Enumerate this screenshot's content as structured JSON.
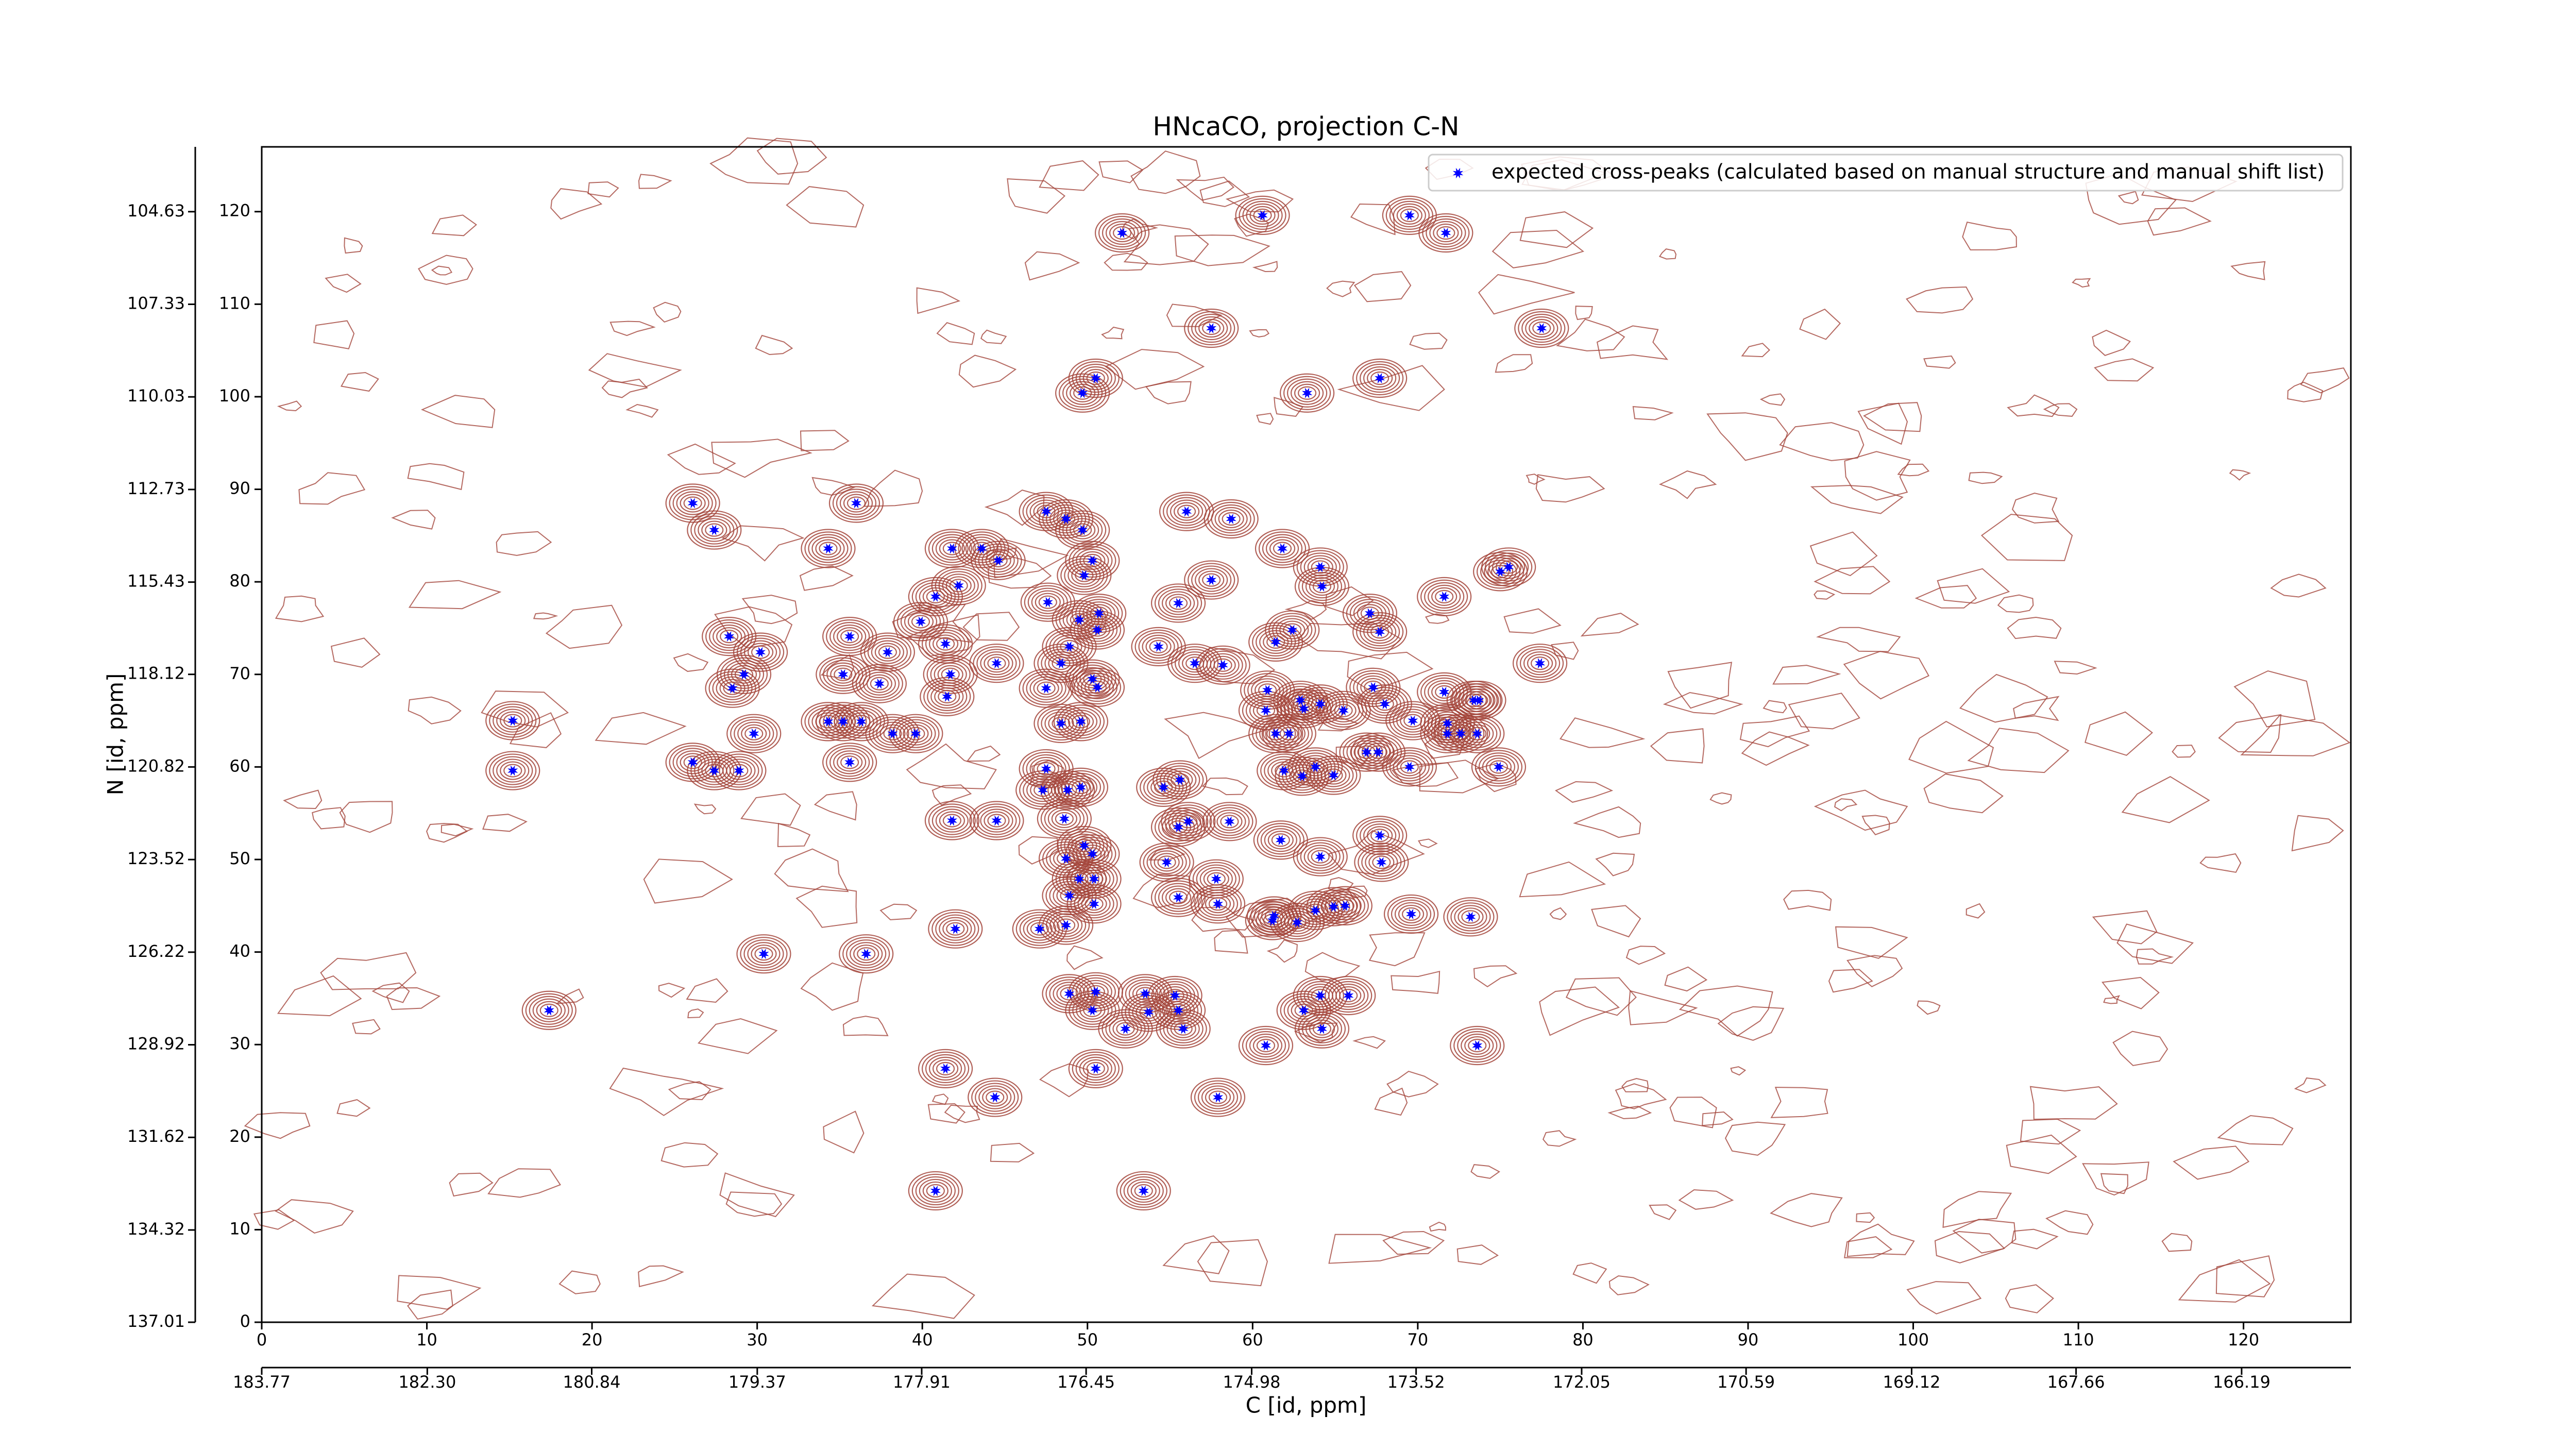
{
  "chart_data": {
    "type": "scatter",
    "title": "HNcaCO, projection C-N",
    "xlabel": "C [id, ppm]",
    "ylabel": "N [id, ppm]",
    "legend": "upper right",
    "contour_color": "#a3443a",
    "xlim": [
      0,
      126.5
    ],
    "xticks": [
      0,
      10,
      20,
      30,
      40,
      50,
      60,
      70,
      80,
      90,
      100,
      110,
      120
    ],
    "ylim": [
      0,
      127
    ],
    "yticks": [
      0,
      10,
      20,
      30,
      40,
      50,
      60,
      70,
      80,
      90,
      100,
      110,
      120
    ],
    "x2lim": [
      183.77,
      165.22
    ],
    "x2ticks": [
      183.77,
      {
        "value": 182.3,
        "label": "182.30"
      },
      180.84,
      179.37,
      177.91,
      176.45,
      174.98,
      173.52,
      172.05,
      170.59,
      169.12,
      167.66,
      166.19
    ],
    "y2lim": [
      137.01,
      102.74
    ],
    "y2ticks": [
      104.63,
      107.33,
      110.03,
      112.73,
      115.43,
      118.12,
      120.82,
      123.52,
      126.22,
      128.92,
      131.62,
      134.32,
      137.01
    ],
    "series": [
      {
        "name": "expected cross-peaks (calculated based on manual structure and manual shift list)",
        "color": "#0000ff",
        "x": [
          52.1,
          60.6,
          69.5,
          71.7,
          57.5,
          77.5,
          50.5,
          49.7,
          63.3,
          67.7,
          26.1,
          27.4,
          36.0,
          34.3,
          41.8,
          43.6,
          44.6,
          47.5,
          48.7,
          49.7,
          56.0,
          58.7,
          61.8,
          64.1,
          64.2,
          50.3,
          49.8,
          42.2,
          40.8,
          47.6,
          57.5,
          55.5,
          71.6,
          75.0,
          75.5,
          39.9,
          49.5,
          50.7,
          50.6,
          67.1,
          67.7,
          28.3,
          35.6,
          41.4,
          48.9,
          54.3,
          61.4,
          62.4,
          30.2,
          37.9,
          44.5,
          48.4,
          56.5,
          58.2,
          77.4,
          29.2,
          35.2,
          41.7,
          28.5,
          37.4,
          47.5,
          50.6,
          50.3,
          60.9,
          62.9,
          67.3,
          71.6,
          73.4,
          41.5,
          60.8,
          63.1,
          64.1,
          65.5,
          68.0,
          69.7,
          71.8,
          73.7,
          15.2,
          34.3,
          35.2,
          36.3,
          29.8,
          38.2,
          39.6,
          48.4,
          49.6,
          61.4,
          62.2,
          71.8,
          72.6,
          73.6,
          26.1,
          27.4,
          28.9,
          35.6,
          15.2,
          47.5,
          61.9,
          63.8,
          64.9,
          66.9,
          67.6,
          69.5,
          74.9,
          63.0,
          55.6,
          47.3,
          48.8,
          49.6,
          54.6,
          48.6,
          41.8,
          44.5,
          55.5,
          56.1,
          58.6,
          61.7,
          67.7,
          49.8,
          48.7,
          50.3,
          64.1,
          54.8,
          67.8,
          50.4,
          49.5,
          57.8,
          48.9,
          55.5,
          50.4,
          57.9,
          61.3,
          61.2,
          62.7,
          63.8,
          64.9,
          65.6,
          69.6,
          73.2,
          42.0,
          47.1,
          48.7,
          30.4,
          36.6,
          17.4,
          48.9,
          50.5,
          53.5,
          55.3,
          55.5,
          50.3,
          53.7,
          52.3,
          55.8,
          64.1,
          65.8,
          63.1,
          64.2,
          41.4,
          50.5,
          60.8,
          73.6,
          44.4,
          57.9,
          40.8,
          53.4
        ],
        "values": [
          117.7,
          119.6,
          119.6,
          117.7,
          107.4,
          107.4,
          102.0,
          100.4,
          100.4,
          102.0,
          88.5,
          85.6,
          88.5,
          83.6,
          83.6,
          83.6,
          82.3,
          87.6,
          86.8,
          85.6,
          87.6,
          86.8,
          83.6,
          81.6,
          79.5,
          82.3,
          80.7,
          79.6,
          78.4,
          77.8,
          80.2,
          77.7,
          78.4,
          81.1,
          81.6,
          75.7,
          75.9,
          76.6,
          74.8,
          76.6,
          74.6,
          74.1,
          74.1,
          73.3,
          73.0,
          73.0,
          73.5,
          74.8,
          72.4,
          72.4,
          71.2,
          71.2,
          71.2,
          71.0,
          71.2,
          70.0,
          70.0,
          70.0,
          68.5,
          69.0,
          68.5,
          68.6,
          69.5,
          68.3,
          67.2,
          68.6,
          68.1,
          67.2,
          67.6,
          66.1,
          66.3,
          66.8,
          66.1,
          66.8,
          65.0,
          64.7,
          67.2,
          65.0,
          64.9,
          64.9,
          64.9,
          63.6,
          63.6,
          63.6,
          64.7,
          64.9,
          63.6,
          63.6,
          63.6,
          63.6,
          63.6,
          60.5,
          59.6,
          59.6,
          60.5,
          59.6,
          59.8,
          59.6,
          60.0,
          59.1,
          61.6,
          61.6,
          60.0,
          60.0,
          59.0,
          58.6,
          57.5,
          57.5,
          57.8,
          57.8,
          54.4,
          54.2,
          54.2,
          53.5,
          54.1,
          54.1,
          52.1,
          52.6,
          51.5,
          50.1,
          50.6,
          50.3,
          49.7,
          49.7,
          47.9,
          47.9,
          47.9,
          46.1,
          45.9,
          45.2,
          45.2,
          43.9,
          43.4,
          43.2,
          44.5,
          44.9,
          45.0,
          44.1,
          43.8,
          42.5,
          42.5,
          42.9,
          39.8,
          39.8,
          33.7,
          35.5,
          35.7,
          35.5,
          35.3,
          33.7,
          33.7,
          33.5,
          31.7,
          31.7,
          35.3,
          35.3,
          33.7,
          31.7,
          27.4,
          27.4,
          29.9,
          29.9,
          24.3,
          24.3,
          14.2,
          14.2
        ]
      }
    ]
  }
}
